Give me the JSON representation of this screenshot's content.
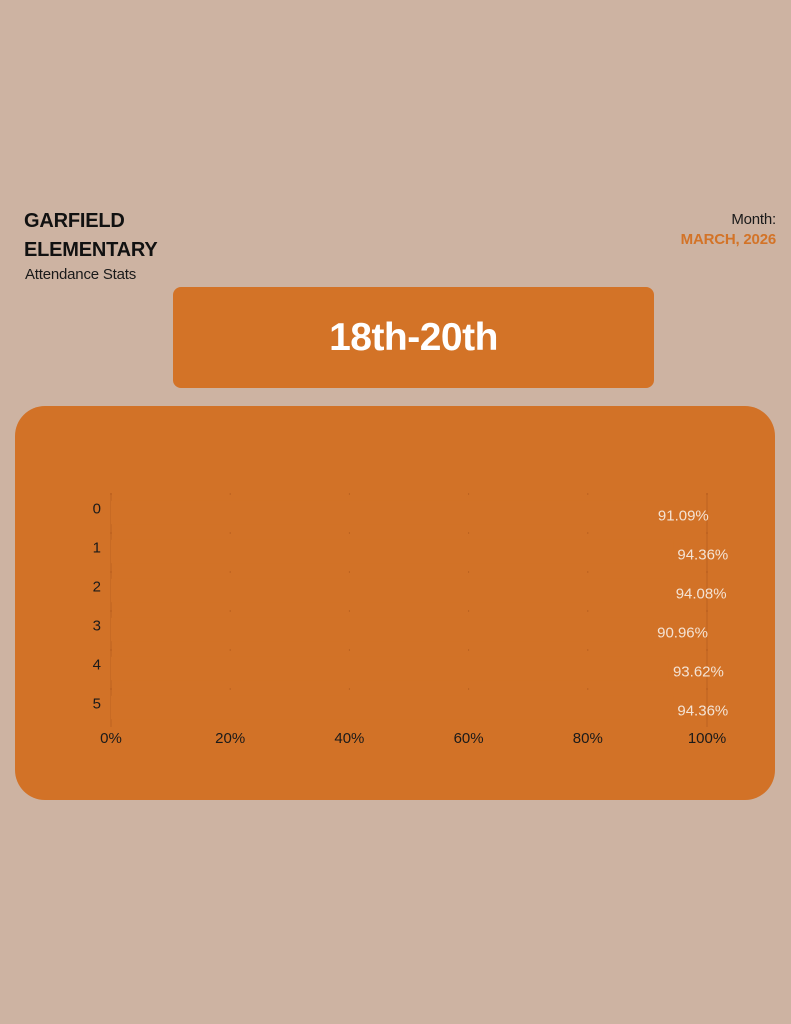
{
  "header": {
    "school_line1": "GARFIELD",
    "school_line2": "ELEMENTARY",
    "subtitle": "Attendance Stats",
    "month_label": "Month:",
    "month_value": "MARCH, 2026"
  },
  "banner": {
    "range": "18th-20th"
  },
  "colors": {
    "background": "#CDB3A2",
    "accent": "#D37327",
    "card": "#D27227",
    "tick_text": "#1a1a1a",
    "value_text": "#F4E3D4"
  },
  "chart_data": {
    "type": "bar",
    "orientation": "horizontal",
    "categories": [
      "0",
      "1",
      "2",
      "3",
      "4",
      "5"
    ],
    "values": [
      91.09,
      94.36,
      94.08,
      90.96,
      93.62,
      94.36
    ],
    "value_labels": [
      "91.09%",
      "94.36%",
      "94.08%",
      "90.96%",
      "93.62%",
      "94.36%"
    ],
    "x_ticks": [
      "0%",
      "20%",
      "40%",
      "60%",
      "80%",
      "100%"
    ],
    "xlim": [
      0,
      100
    ],
    "title": "",
    "xlabel": "",
    "ylabel": ""
  }
}
